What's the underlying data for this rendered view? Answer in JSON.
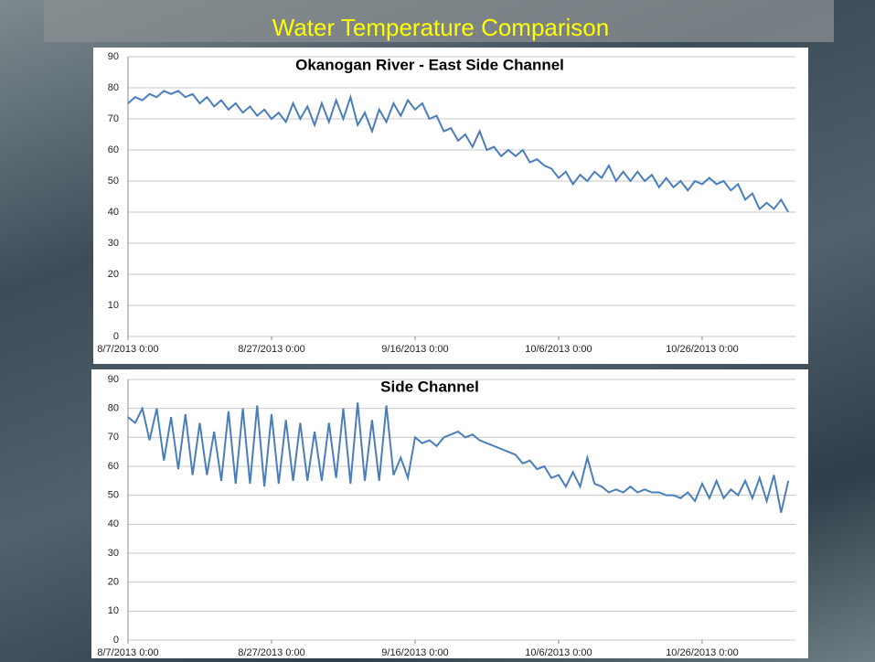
{
  "slide_title": "Water Temperature Comparison",
  "chart_data": [
    {
      "type": "line",
      "title": "Okanogan River - East Side Channel",
      "color": "#4a7ebb",
      "grid": true,
      "x": [
        "2013-08-07",
        "2013-08-08",
        "2013-08-09",
        "2013-08-10",
        "2013-08-11",
        "2013-08-12",
        "2013-08-13",
        "2013-08-14",
        "2013-08-15",
        "2013-08-16",
        "2013-08-17",
        "2013-08-18",
        "2013-08-19",
        "2013-08-20",
        "2013-08-21",
        "2013-08-22",
        "2013-08-23",
        "2013-08-24",
        "2013-08-25",
        "2013-08-26",
        "2013-08-27",
        "2013-08-28",
        "2013-08-29",
        "2013-08-30",
        "2013-08-31",
        "2013-09-01",
        "2013-09-02",
        "2013-09-03",
        "2013-09-04",
        "2013-09-05",
        "2013-09-06",
        "2013-09-07",
        "2013-09-08",
        "2013-09-09",
        "2013-09-10",
        "2013-09-11",
        "2013-09-12",
        "2013-09-13",
        "2013-09-14",
        "2013-09-15",
        "2013-09-16",
        "2013-09-17",
        "2013-09-18",
        "2013-09-19",
        "2013-09-20",
        "2013-09-21",
        "2013-09-22",
        "2013-09-23",
        "2013-09-24",
        "2013-09-25",
        "2013-09-26",
        "2013-09-27",
        "2013-09-28",
        "2013-09-29",
        "2013-09-30",
        "2013-10-01",
        "2013-10-02",
        "2013-10-03",
        "2013-10-04",
        "2013-10-05",
        "2013-10-06",
        "2013-10-07",
        "2013-10-08",
        "2013-10-09",
        "2013-10-10",
        "2013-10-11",
        "2013-10-12",
        "2013-10-13",
        "2013-10-14",
        "2013-10-15",
        "2013-10-16",
        "2013-10-17",
        "2013-10-18",
        "2013-10-19",
        "2013-10-20",
        "2013-10-21",
        "2013-10-22",
        "2013-10-23",
        "2013-10-24",
        "2013-10-25",
        "2013-10-26",
        "2013-10-27",
        "2013-10-28",
        "2013-10-29",
        "2013-10-30",
        "2013-10-31",
        "2013-11-01",
        "2013-11-02",
        "2013-11-03",
        "2013-11-04",
        "2013-11-05",
        "2013-11-06",
        "2013-11-07"
      ],
      "values": [
        75,
        77,
        76,
        78,
        77,
        79,
        78,
        79,
        77,
        78,
        75,
        77,
        74,
        76,
        73,
        75,
        72,
        74,
        71,
        73,
        70,
        72,
        69,
        75,
        70,
        74,
        68,
        75,
        69,
        76,
        70,
        77,
        68,
        72,
        66,
        73,
        69,
        75,
        71,
        76,
        73,
        75,
        70,
        71,
        66,
        67,
        63,
        65,
        61,
        66,
        60,
        61,
        58,
        60,
        58,
        60,
        56,
        57,
        55,
        54,
        51,
        53,
        49,
        52,
        50,
        53,
        51,
        55,
        50,
        53,
        50,
        53,
        50,
        52,
        48,
        51,
        48,
        50,
        47,
        50,
        49,
        51,
        49,
        50,
        47,
        49,
        44,
        46,
        41,
        43,
        41,
        44,
        40
      ],
      "xlim": [
        "2013-08-07",
        "2013-11-08"
      ],
      "xticks": [
        {
          "value": "2013-08-07",
          "label": "8/7/2013 0:00"
        },
        {
          "value": "2013-08-27",
          "label": "8/27/2013 0:00"
        },
        {
          "value": "2013-09-16",
          "label": "9/16/2013 0:00"
        },
        {
          "value": "2013-10-06",
          "label": "10/6/2013 0:00"
        },
        {
          "value": "2013-10-26",
          "label": "10/26/2013 0:00"
        }
      ],
      "ylim": [
        0,
        90
      ],
      "yticks": [
        0,
        10,
        20,
        30,
        40,
        50,
        60,
        70,
        80,
        90
      ]
    },
    {
      "type": "line",
      "title": "Side Channel",
      "color": "#4a7ebb",
      "grid": true,
      "x": [
        "2013-08-07",
        "2013-08-08",
        "2013-08-09",
        "2013-08-10",
        "2013-08-11",
        "2013-08-12",
        "2013-08-13",
        "2013-08-14",
        "2013-08-15",
        "2013-08-16",
        "2013-08-17",
        "2013-08-18",
        "2013-08-19",
        "2013-08-20",
        "2013-08-21",
        "2013-08-22",
        "2013-08-23",
        "2013-08-24",
        "2013-08-25",
        "2013-08-26",
        "2013-08-27",
        "2013-08-28",
        "2013-08-29",
        "2013-08-30",
        "2013-08-31",
        "2013-09-01",
        "2013-09-02",
        "2013-09-03",
        "2013-09-04",
        "2013-09-05",
        "2013-09-06",
        "2013-09-07",
        "2013-09-08",
        "2013-09-09",
        "2013-09-10",
        "2013-09-11",
        "2013-09-12",
        "2013-09-13",
        "2013-09-14",
        "2013-09-15",
        "2013-09-16",
        "2013-09-17",
        "2013-09-18",
        "2013-09-19",
        "2013-09-20",
        "2013-09-21",
        "2013-09-22",
        "2013-09-23",
        "2013-09-24",
        "2013-09-25",
        "2013-09-26",
        "2013-09-27",
        "2013-09-28",
        "2013-09-29",
        "2013-09-30",
        "2013-10-01",
        "2013-10-02",
        "2013-10-03",
        "2013-10-04",
        "2013-10-05",
        "2013-10-06",
        "2013-10-07",
        "2013-10-08",
        "2013-10-09",
        "2013-10-10",
        "2013-10-11",
        "2013-10-12",
        "2013-10-13",
        "2013-10-14",
        "2013-10-15",
        "2013-10-16",
        "2013-10-17",
        "2013-10-18",
        "2013-10-19",
        "2013-10-20",
        "2013-10-21",
        "2013-10-22",
        "2013-10-23",
        "2013-10-24",
        "2013-10-25",
        "2013-10-26",
        "2013-10-27",
        "2013-10-28",
        "2013-10-29",
        "2013-10-30",
        "2013-10-31",
        "2013-11-01",
        "2013-11-02",
        "2013-11-03",
        "2013-11-04",
        "2013-11-05",
        "2013-11-06",
        "2013-11-07"
      ],
      "values": [
        77,
        75,
        80,
        69,
        80,
        62,
        77,
        59,
        78,
        57,
        75,
        57,
        72,
        55,
        79,
        54,
        80,
        54,
        81,
        53,
        78,
        54,
        76,
        55,
        75,
        55,
        72,
        55,
        75,
        56,
        80,
        54,
        82,
        55,
        76,
        55,
        81,
        57,
        63,
        56,
        70,
        68,
        69,
        67,
        70,
        71,
        72,
        70,
        71,
        69,
        68,
        67,
        66,
        65,
        64,
        61,
        62,
        59,
        60,
        56,
        57,
        53,
        58,
        53,
        63,
        54,
        53,
        51,
        52,
        51,
        53,
        51,
        52,
        51,
        51,
        50,
        50,
        49,
        51,
        48,
        54,
        49,
        55,
        49,
        52,
        50,
        55,
        49,
        56,
        48,
        57,
        44,
        55
      ],
      "xlim": [
        "2013-08-07",
        "2013-11-08"
      ],
      "xticks": [
        {
          "value": "2013-08-07",
          "label": "8/7/2013 0:00"
        },
        {
          "value": "2013-08-27",
          "label": "8/27/2013 0:00"
        },
        {
          "value": "2013-09-16",
          "label": "9/16/2013 0:00"
        },
        {
          "value": "2013-10-06",
          "label": "10/6/2013 0:00"
        },
        {
          "value": "2013-10-26",
          "label": "10/26/2013 0:00"
        }
      ],
      "ylim": [
        0,
        90
      ],
      "yticks": [
        0,
        10,
        20,
        30,
        40,
        50,
        60,
        70,
        80,
        90
      ]
    }
  ]
}
